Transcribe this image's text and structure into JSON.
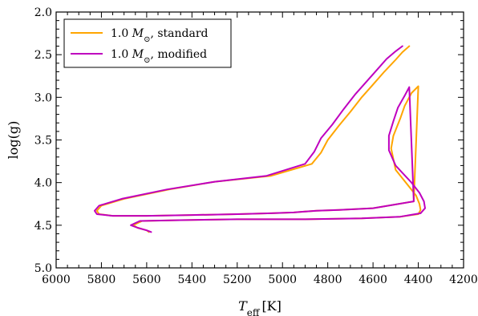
{
  "chart_data": {
    "type": "line",
    "title": "",
    "xlabel": {
      "symbol": "T",
      "subscript": "eff",
      "unit": "[K]"
    },
    "ylabel": "log(g)",
    "xlim": [
      6000,
      4200
    ],
    "ylim": [
      2.0,
      5.0
    ],
    "y_inverted": true,
    "x_inverted": true,
    "grid": false,
    "legend_position": "top-left",
    "x_ticks": [
      6000,
      5800,
      5600,
      5400,
      5200,
      5000,
      4800,
      4600,
      4400,
      4200
    ],
    "x_tick_labels": [
      "6000",
      "5800",
      "5600",
      "5400",
      "5200",
      "5000",
      "4800",
      "4600",
      "4400",
      "4200"
    ],
    "y_ticks": [
      2.0,
      2.5,
      3.0,
      3.5,
      4.0,
      4.5,
      5.0
    ],
    "y_tick_labels": [
      "2.0",
      "2.5",
      "3.0",
      "3.5",
      "4.0",
      "4.5",
      "5.0"
    ],
    "series": [
      {
        "name": "1.0 M☉, standard",
        "legend_parts": {
          "prefix": "1.0 ",
          "symbol": "M",
          "subscript": "⊙",
          "suffix": ", standard"
        },
        "color": "#ffa500",
        "x": [
          5590,
          5600,
          5640,
          5660,
          5620,
          5450,
          5200,
          4900,
          4650,
          4480,
          4400,
          4390,
          4395,
          4410,
          4440,
          4500,
          4520,
          4510,
          4480,
          4460,
          4430,
          4400,
          4420,
          4600,
          4750,
          4850,
          4900,
          4950,
          5050,
          5200,
          5400,
          5600,
          5750,
          5810,
          5820,
          5800,
          5700,
          5500,
          5300,
          5050,
          4870,
          4830,
          4800,
          4750,
          4700,
          4650,
          4600,
          4550,
          4500,
          4470,
          4440
        ],
        "y": [
          4.58,
          4.56,
          4.53,
          4.5,
          4.45,
          4.44,
          4.43,
          4.43,
          4.42,
          4.4,
          4.37,
          4.32,
          4.25,
          4.15,
          4.05,
          3.85,
          3.6,
          3.45,
          3.25,
          3.1,
          2.95,
          2.87,
          4.22,
          4.3,
          4.32,
          4.33,
          4.34,
          4.35,
          4.36,
          4.37,
          4.38,
          4.39,
          4.39,
          4.37,
          4.33,
          4.27,
          4.19,
          4.08,
          3.99,
          3.92,
          3.78,
          3.65,
          3.5,
          3.33,
          3.17,
          3.0,
          2.85,
          2.7,
          2.56,
          2.47,
          2.4
        ]
      },
      {
        "name": "1.0 M☉, modified",
        "legend_parts": {
          "prefix": "1.0 ",
          "symbol": "M",
          "subscript": "⊙",
          "suffix": ", modified"
        },
        "color": "#bf00bf",
        "x": [
          5580,
          5600,
          5640,
          5670,
          5630,
          5450,
          5200,
          4900,
          4650,
          4480,
          4390,
          4370,
          4375,
          4395,
          4430,
          4500,
          4530,
          4530,
          4510,
          4490,
          4460,
          4440,
          4420,
          4600,
          4750,
          4850,
          4900,
          4950,
          5050,
          5200,
          5400,
          5600,
          5750,
          5820,
          5830,
          5810,
          5710,
          5510,
          5300,
          5070,
          4900,
          4860,
          4830,
          4780,
          4730,
          4680,
          4630,
          4580,
          4540,
          4500,
          4470
        ],
        "y": [
          4.58,
          4.56,
          4.53,
          4.5,
          4.45,
          4.44,
          4.43,
          4.43,
          4.42,
          4.4,
          4.36,
          4.3,
          4.22,
          4.12,
          4.0,
          3.8,
          3.62,
          3.45,
          3.28,
          3.12,
          2.98,
          2.88,
          4.22,
          4.3,
          4.32,
          4.33,
          4.34,
          4.35,
          4.36,
          4.37,
          4.38,
          4.39,
          4.39,
          4.37,
          4.33,
          4.27,
          4.19,
          4.08,
          3.99,
          3.92,
          3.78,
          3.64,
          3.48,
          3.32,
          3.14,
          2.97,
          2.82,
          2.67,
          2.55,
          2.46,
          2.4
        ]
      }
    ]
  }
}
